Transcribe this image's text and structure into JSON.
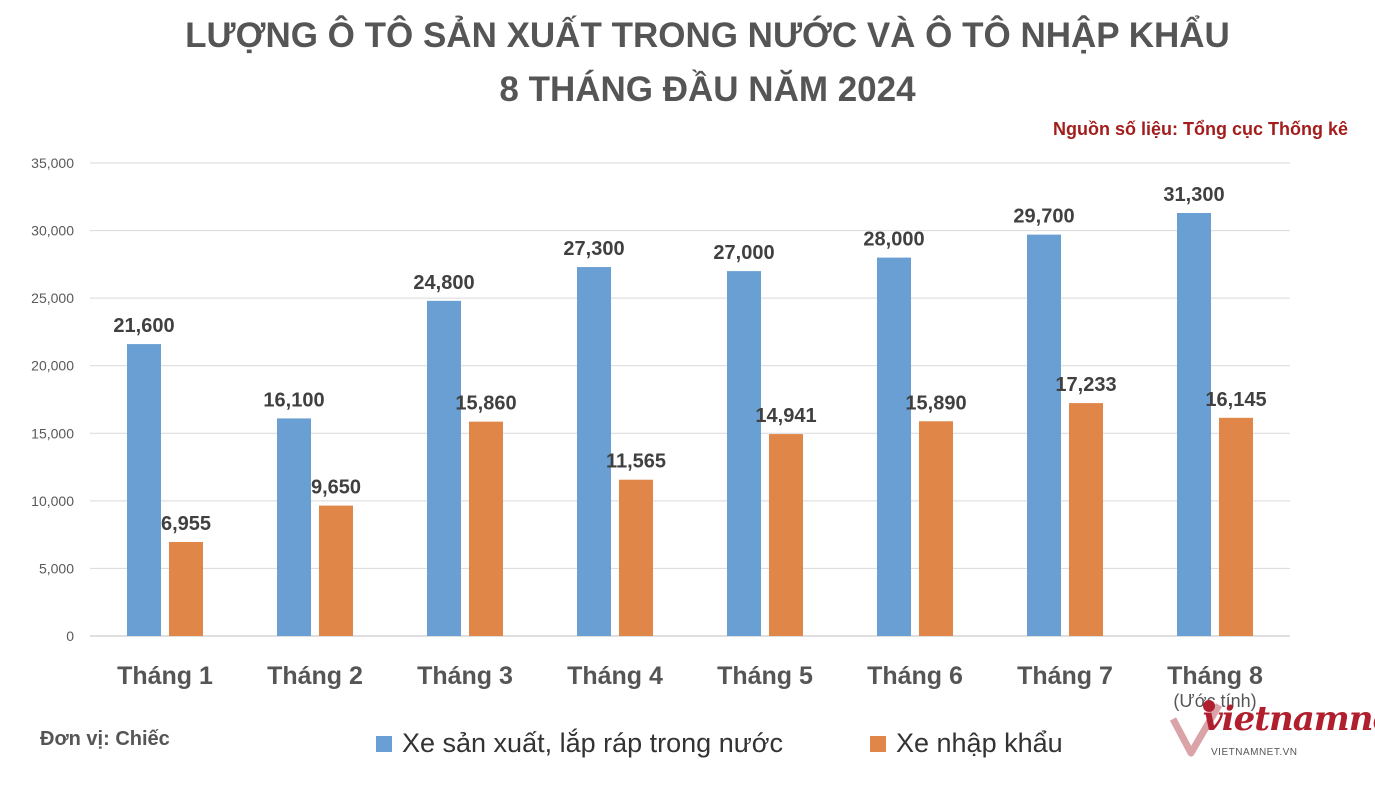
{
  "title": {
    "line1": "LƯỢNG Ô TÔ SẢN XUẤT TRONG NƯỚC VÀ Ô TÔ NHẬP KHẨU",
    "line2": "8 THÁNG ĐẦU NĂM 2024"
  },
  "source": "Nguồn số liệu: Tổng cục Thống kê",
  "unit": "Đơn vị: Chiếc",
  "watermark": {
    "brand": "vietnamnet",
    "domain": "VIETNAMNET.VN"
  },
  "colors": {
    "domestic": "#6a9fd3",
    "imported": "#e08648",
    "title": "#555555",
    "source": "#a31d1d"
  },
  "chart_data": {
    "type": "bar",
    "categories": [
      "Tháng 1",
      "Tháng 2",
      "Tháng 3",
      "Tháng 4",
      "Tháng 5",
      "Tháng 6",
      "Tháng 7",
      "Tháng 8"
    ],
    "category_notes": [
      "",
      "",
      "",
      "",
      "",
      "",
      "",
      "(Ước tính)"
    ],
    "series": [
      {
        "name": "Xe sản xuất, lắp ráp trong nước",
        "values": [
          21600,
          16100,
          24800,
          27300,
          27000,
          28000,
          29700,
          31300
        ]
      },
      {
        "name": "Xe nhập khẩu",
        "values": [
          6955,
          9650,
          15860,
          11565,
          14941,
          15890,
          17233,
          16145
        ]
      }
    ],
    "ylim": [
      0,
      35000
    ],
    "yticks": [
      0,
      5000,
      10000,
      15000,
      20000,
      25000,
      30000,
      35000
    ],
    "grid": true,
    "legend": "bottom"
  }
}
